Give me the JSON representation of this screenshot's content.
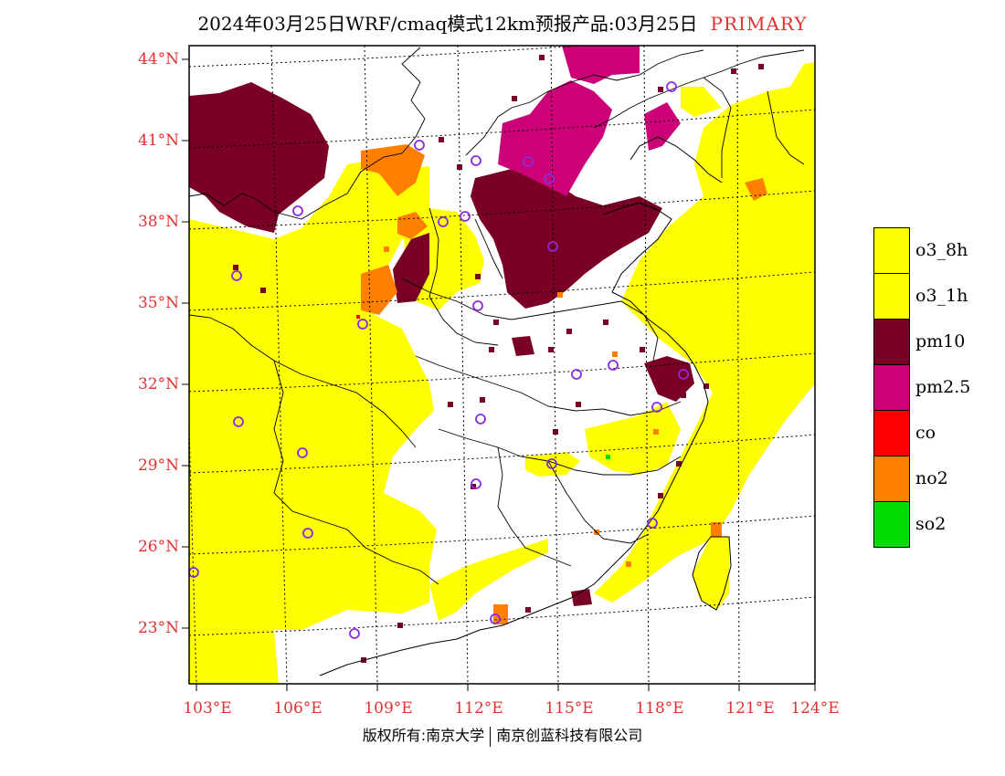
{
  "title": {
    "main": "2024年03月25日WRF/cmaq模式12km预报产品:03月25日",
    "tag": "PRIMARY"
  },
  "map": {
    "lat_labels": [
      "44°N",
      "41°N",
      "38°N",
      "35°N",
      "32°N",
      "29°N",
      "26°N",
      "23°N"
    ],
    "lon_labels": [
      "103°E",
      "106°E",
      "109°E",
      "112°E",
      "115°E",
      "118°E",
      "121°E",
      "124°E"
    ],
    "colors": {
      "o3_8h": "#ffff00",
      "o3_1h": "#ffff00",
      "pm10": "#7a0026",
      "pm2_5": "#cc0077",
      "co": "#ff0000",
      "no2": "#ff7f00",
      "so2": "#00dd00",
      "station_ring": "#8a2be2",
      "axis_label": "#e53030"
    }
  },
  "legend": [
    {
      "key": "o3_8h",
      "label": "o3_8h",
      "color": "#ffff00"
    },
    {
      "key": "o3_1h",
      "label": "o3_1h",
      "color": "#ffff00"
    },
    {
      "key": "pm10",
      "label": "pm10",
      "color": "#7a0026"
    },
    {
      "key": "pm2_5",
      "label": "pm2.5",
      "color": "#cc0077"
    },
    {
      "key": "co",
      "label": "co",
      "color": "#ff0000"
    },
    {
      "key": "no2",
      "label": "no2",
      "color": "#ff7f00"
    },
    {
      "key": "so2",
      "label": "so2",
      "color": "#00dd00"
    }
  ],
  "footer": {
    "left": "版权所有:南京大学",
    "right": "南京创蓝科技有限公司"
  }
}
